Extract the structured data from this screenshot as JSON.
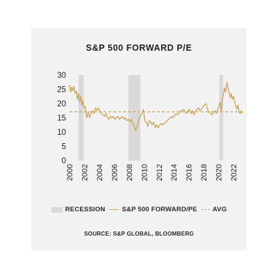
{
  "chart_data": {
    "type": "line",
    "title": "S&P 500 FORWARD P/E",
    "source": "SOURCE: S&P GLOBAL, BLOOMBERG",
    "ylim": [
      0,
      30
    ],
    "xlim": [
      2000,
      2023.3
    ],
    "y_ticks": [
      "0",
      "5",
      "10",
      "15",
      "20",
      "25",
      "30"
    ],
    "x_ticks": [
      "2000",
      "2002",
      "2004",
      "2006",
      "2008",
      "2010",
      "2012",
      "2014",
      "2016",
      "2018",
      "2020",
      "2022"
    ],
    "recessions": [
      [
        2001.2,
        2001.9
      ],
      [
        2007.9,
        2009.5
      ],
      [
        2020.1,
        2020.6
      ]
    ],
    "average": 17.1,
    "grid": false,
    "legend_position": "bottom",
    "legend": {
      "recession": "RECESSION",
      "series": "S&P 500 FORWARD/PE",
      "avg": "AVG"
    },
    "colors": {
      "series": "#c9a35a",
      "recession": "#d9d9d9",
      "text": "#1e1e1e"
    },
    "series": [
      {
        "x": [
          2000.0,
          2000.15,
          2000.3,
          2000.45,
          2000.6,
          2000.75,
          2000.9,
          2001.05,
          2001.2,
          2001.35,
          2001.5,
          2001.65,
          2001.8,
          2001.95,
          2002.1,
          2002.3,
          2002.5,
          2002.7,
          2002.9,
          2003.1,
          2003.3,
          2003.5,
          2003.7,
          2003.9,
          2004.1,
          2004.3,
          2004.5,
          2004.7,
          2004.9,
          2005.1,
          2005.3,
          2005.5,
          2005.7,
          2005.9,
          2006.1,
          2006.3,
          2006.5,
          2006.7,
          2006.9,
          2007.1,
          2007.3,
          2007.5,
          2007.7,
          2007.9,
          2008.1,
          2008.3,
          2008.5,
          2008.7,
          2008.85,
          2009.0,
          2009.15,
          2009.3,
          2009.5,
          2009.7,
          2009.9,
          2010.1,
          2010.3,
          2010.5,
          2010.7,
          2010.9,
          2011.1,
          2011.3,
          2011.5,
          2011.7,
          2011.9,
          2012.1,
          2012.3,
          2012.5,
          2012.7,
          2012.9,
          2013.1,
          2013.3,
          2013.5,
          2013.7,
          2013.9,
          2014.1,
          2014.3,
          2014.5,
          2014.7,
          2014.9,
          2015.1,
          2015.3,
          2015.5,
          2015.7,
          2015.9,
          2016.1,
          2016.3,
          2016.5,
          2016.7,
          2016.9,
          2017.1,
          2017.3,
          2017.5,
          2017.7,
          2017.9,
          2018.1,
          2018.3,
          2018.5,
          2018.7,
          2018.9,
          2019.1,
          2019.3,
          2019.5,
          2019.7,
          2019.9,
          2020.05,
          2020.2,
          2020.35,
          2020.5,
          2020.65,
          2020.8,
          2020.95,
          2021.1,
          2021.25,
          2021.4,
          2021.55,
          2021.7,
          2021.85,
          2022.0,
          2022.15,
          2022.3,
          2022.45,
          2022.6,
          2022.75,
          2022.9,
          2023.05,
          2023.2
        ],
        "values": [
          26.5,
          24.0,
          25.8,
          24.5,
          26.0,
          23.5,
          24.5,
          21.5,
          23.5,
          20.5,
          22.5,
          19.5,
          21.0,
          18.5,
          19.0,
          15.0,
          17.0,
          15.0,
          16.5,
          17.5,
          16.5,
          18.5,
          17.5,
          18.5,
          17.0,
          16.5,
          16.0,
          15.5,
          16.5,
          15.0,
          14.5,
          15.5,
          15.0,
          15.5,
          14.5,
          15.0,
          15.5,
          14.5,
          15.0,
          15.5,
          14.5,
          15.0,
          14.0,
          14.5,
          13.5,
          14.5,
          13.0,
          12.0,
          10.5,
          11.5,
          12.5,
          14.5,
          15.5,
          16.5,
          18.0,
          14.0,
          13.5,
          12.0,
          14.0,
          13.5,
          12.5,
          13.5,
          11.5,
          12.5,
          11.5,
          12.5,
          13.0,
          12.5,
          13.0,
          13.5,
          14.0,
          14.5,
          15.0,
          15.5,
          15.0,
          16.0,
          16.5,
          16.0,
          16.5,
          17.5,
          17.5,
          18.0,
          17.0,
          16.5,
          17.5,
          18.0,
          16.5,
          17.5,
          16.0,
          17.5,
          18.0,
          18.5,
          17.5,
          18.0,
          19.0,
          19.5,
          20.0,
          18.0,
          17.0,
          16.5,
          16.0,
          17.0,
          17.5,
          16.5,
          18.0,
          19.5,
          20.5,
          17.5,
          21.5,
          23.5,
          25.5,
          24.0,
          27.5,
          25.5,
          24.0,
          22.0,
          23.5,
          21.5,
          22.5,
          20.5,
          19.0,
          18.0,
          19.5,
          17.0,
          16.5,
          17.5,
          16.5
        ]
      }
    ]
  }
}
